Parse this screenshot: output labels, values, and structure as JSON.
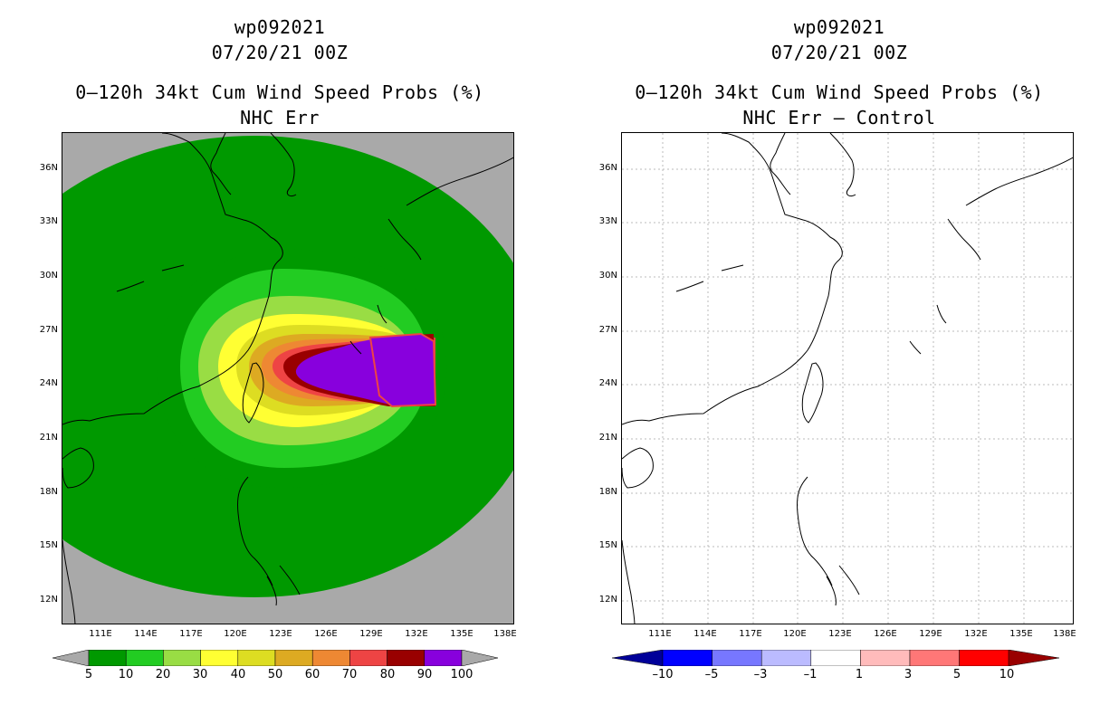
{
  "left": {
    "title1": "wp092021",
    "title2": "07/20/21 00Z",
    "title3": "0–120h 34kt Cum Wind Speed Probs (%)",
    "title4": "NHC Err",
    "background": "#a9a9a9",
    "colorbar": {
      "colors": [
        "#009900",
        "#22cc22",
        "#99dd44",
        "#ffff33",
        "#dddd22",
        "#ddaa22",
        "#ee8833",
        "#ee4444",
        "#990000",
        "#8800dd"
      ],
      "labels": [
        "5",
        "10",
        "20",
        "30",
        "40",
        "50",
        "60",
        "70",
        "80",
        "90",
        "100"
      ]
    }
  },
  "right": {
    "title1": "wp092021",
    "title2": "07/20/21 00Z",
    "title3": "0–120h 34kt Cum Wind Speed Probs (%)",
    "title4": "NHC Err – Control",
    "background": "#ffffff",
    "colorbar": {
      "colors": [
        "#0000ff",
        "#7777ff",
        "#bbbbff",
        "#ffffff",
        "#ffbbbb",
        "#ff7777",
        "#ff0000"
      ],
      "end_colors": [
        "#000099",
        "#990000"
      ],
      "labels": [
        "-10",
        "-5",
        "-3",
        "-1",
        "1",
        "3",
        "5",
        "10"
      ]
    }
  },
  "lat_labels": [
    "36N",
    "33N",
    "30N",
    "27N",
    "24N",
    "21N",
    "18N",
    "15N",
    "12N"
  ],
  "lon_labels": [
    "111E",
    "114E",
    "117E",
    "120E",
    "123E",
    "126E",
    "129E",
    "132E",
    "135E",
    "138E"
  ],
  "map_extent": {
    "lon_min": 108,
    "lon_max": 138,
    "lat_min": 10.5,
    "lat_max": 37.5
  }
}
